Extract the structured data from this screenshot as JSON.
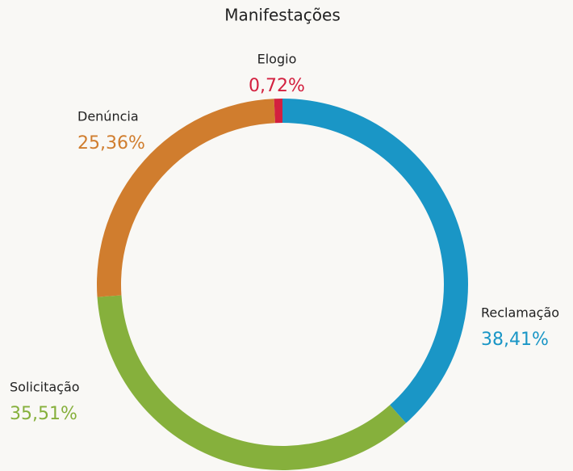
{
  "chart_data": {
    "type": "donut",
    "title": "Manifestações",
    "categories": [
      "Reclamação",
      "Solicitação",
      "Denúncia",
      "Elogio"
    ],
    "values": [
      38.41,
      35.51,
      25.36,
      0.72
    ],
    "value_labels": [
      "38,41%",
      "35,51%",
      "25,36%",
      "0,72%"
    ],
    "colors": [
      "#1a96c6",
      "#86b03c",
      "#d07d2e",
      "#d3203f"
    ]
  }
}
